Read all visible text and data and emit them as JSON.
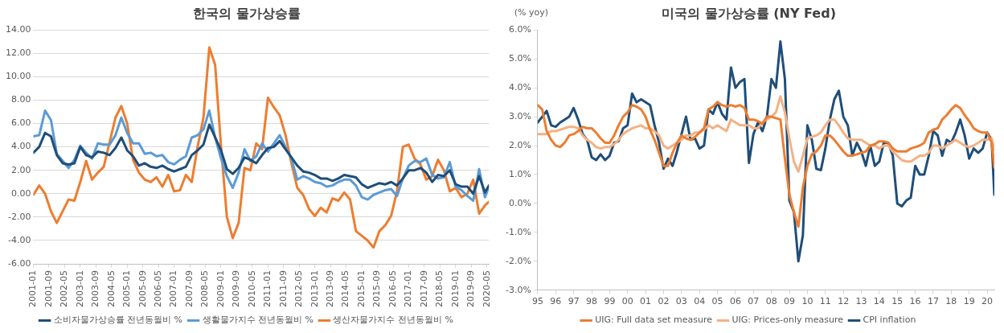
{
  "chart_data": [
    {
      "type": "line",
      "title": "한국의 물가상승률",
      "grid": "y",
      "legend": "bottom",
      "x": [
        "2001-01",
        "2001-04",
        "2001-07",
        "2001-10",
        "2002-01",
        "2002-04",
        "2002-07",
        "2002-10",
        "2003-01",
        "2003-04",
        "2003-07",
        "2003-10",
        "2004-01",
        "2004-04",
        "2004-07",
        "2004-10",
        "2005-01",
        "2005-04",
        "2005-07",
        "2005-10",
        "2006-01",
        "2006-04",
        "2006-07",
        "2006-10",
        "2007-01",
        "2007-04",
        "2007-07",
        "2007-10",
        "2008-01",
        "2008-04",
        "2008-07",
        "2008-10",
        "2009-01",
        "2009-04",
        "2009-07",
        "2009-10",
        "2010-01",
        "2010-04",
        "2010-07",
        "2010-10",
        "2011-01",
        "2011-04",
        "2011-07",
        "2011-10",
        "2012-01",
        "2012-04",
        "2012-07",
        "2012-10",
        "2013-01",
        "2013-04",
        "2013-07",
        "2013-10",
        "2014-01",
        "2014-04",
        "2014-07",
        "2014-10",
        "2015-01",
        "2015-04",
        "2015-07",
        "2015-10",
        "2016-01",
        "2016-04",
        "2016-07",
        "2016-10",
        "2017-01",
        "2017-04",
        "2017-07",
        "2017-10",
        "2018-01",
        "2018-04",
        "2018-07",
        "2018-10",
        "2019-01",
        "2019-04",
        "2019-07",
        "2019-10",
        "2020-01",
        "2020-04",
        "2020-06"
      ],
      "xlim": [
        "2001-01",
        "2020-06"
      ],
      "xticks": [
        "2001-01",
        "2001-09",
        "2002-05",
        "2003-01",
        "2003-09",
        "2004-05",
        "2005-01",
        "2005-09",
        "2006-05",
        "2007-01",
        "2007-09",
        "2008-05",
        "2009-01",
        "2009-09",
        "2010-05",
        "2011-01",
        "2011-09",
        "2012-05",
        "2013-01",
        "2013-09",
        "2014-05",
        "2015-01",
        "2015-09",
        "2016-05",
        "2017-01",
        "2017-09",
        "2018-05",
        "2019-01",
        "2019-09",
        "2020-05"
      ],
      "ylim": [
        -6,
        14
      ],
      "yticks": [
        {
          "value": -6,
          "label": "-6.00"
        },
        {
          "value": -4,
          "label": "-4.00"
        },
        {
          "value": -2,
          "label": "-2.00"
        },
        {
          "value": 0,
          "label": "0.00"
        },
        {
          "value": 2,
          "label": "2.00"
        },
        {
          "value": 4,
          "label": "4.00"
        },
        {
          "value": 6,
          "label": "6.00"
        },
        {
          "value": 8,
          "label": "8.00"
        },
        {
          "value": 10,
          "label": "10.00"
        },
        {
          "value": 12,
          "label": "12.00"
        },
        {
          "value": 14,
          "label": "14.00"
        }
      ],
      "series": [
        {
          "name": "소비자물가상승률 전년동월비 %",
          "color": "#1f4e79",
          "values": [
            3.5,
            4.0,
            5.2,
            4.9,
            3.3,
            2.6,
            2.5,
            2.6,
            4.0,
            3.3,
            3.1,
            3.6,
            3.5,
            3.3,
            3.9,
            4.8,
            3.7,
            3.2,
            2.4,
            2.6,
            2.3,
            2.2,
            2.4,
            2.1,
            1.9,
            2.1,
            2.3,
            3.3,
            3.7,
            4.2,
            5.9,
            4.8,
            3.7,
            2.1,
            1.7,
            2.2,
            3.1,
            2.9,
            2.6,
            3.3,
            3.9,
            4.0,
            4.5,
            3.8,
            3.1,
            2.4,
            1.9,
            1.8,
            1.6,
            1.3,
            1.3,
            1.1,
            1.3,
            1.6,
            1.5,
            1.4,
            0.8,
            0.5,
            0.7,
            0.9,
            0.8,
            1.0,
            0.7,
            1.3,
            2.0,
            2.0,
            2.2,
            1.8,
            1.0,
            1.6,
            1.5,
            2.0,
            0.8,
            0.6,
            0.6,
            0.0,
            1.5,
            0.1,
            0.7
          ]
        },
        {
          "name": "생활물가지수 전년동월비 %",
          "color": "#5b9bd5",
          "values": [
            4.9,
            5.0,
            7.1,
            6.3,
            3.4,
            2.8,
            2.2,
            2.9,
            4.1,
            3.5,
            3.0,
            4.3,
            4.2,
            4.2,
            5.0,
            6.5,
            5.2,
            4.3,
            4.3,
            3.4,
            3.5,
            3.2,
            3.3,
            2.7,
            2.5,
            2.9,
            3.2,
            4.8,
            5.0,
            5.5,
            7.1,
            4.8,
            3.0,
            1.5,
            0.5,
            1.8,
            3.8,
            2.8,
            3.2,
            4.3,
            3.6,
            4.3,
            5.0,
            4.0,
            3.0,
            1.2,
            1.5,
            1.3,
            1.0,
            0.9,
            0.6,
            0.7,
            1.0,
            1.2,
            1.2,
            0.7,
            -0.3,
            -0.5,
            -0.1,
            0.1,
            0.3,
            0.4,
            -0.2,
            1.3,
            2.4,
            2.8,
            2.7,
            3.0,
            1.6,
            1.3,
            1.4,
            2.7,
            0.6,
            0.3,
            -0.2,
            -0.6,
            2.1,
            -0.3,
            0.6
          ]
        },
        {
          "name": "생산자물가지수 전년동월비 %",
          "color": "#ed7d31",
          "values": [
            -0.1,
            0.7,
            0.0,
            -1.5,
            -2.5,
            -1.5,
            -0.5,
            -0.6,
            1.0,
            2.8,
            1.2,
            1.8,
            2.3,
            4.4,
            6.5,
            7.5,
            6.0,
            2.9,
            1.8,
            1.2,
            1.0,
            1.4,
            0.6,
            1.6,
            0.2,
            0.3,
            1.6,
            1.0,
            4.0,
            6.5,
            12.5,
            11.0,
            4.0,
            -2.0,
            -3.8,
            -2.5,
            2.2,
            2.0,
            4.3,
            3.8,
            8.2,
            7.4,
            6.7,
            5.0,
            2.6,
            0.5,
            -0.1,
            -1.3,
            -1.9,
            -1.2,
            -1.6,
            -0.4,
            -0.6,
            0.1,
            -0.5,
            -3.2,
            -3.6,
            -4.0,
            -4.6,
            -3.2,
            -2.7,
            -1.9,
            0.2,
            4.0,
            4.2,
            3.0,
            2.5,
            1.2,
            1.5,
            2.9,
            2.0,
            0.2,
            0.5,
            -0.3,
            0.0,
            1.2,
            -1.7,
            -1.0,
            -0.7
          ]
        }
      ]
    },
    {
      "type": "line",
      "title": "미국의 물가상승률 (NY Fed)",
      "ylabel": "(% yoy)",
      "legend": "bottom",
      "x": [
        1995,
        1995.25,
        1995.5,
        1995.75,
        1996,
        1996.25,
        1996.5,
        1996.75,
        1997,
        1997.25,
        1997.5,
        1997.75,
        1998,
        1998.25,
        1998.5,
        1998.75,
        1999,
        1999.25,
        1999.5,
        1999.75,
        2000,
        2000.25,
        2000.5,
        2000.75,
        2001,
        2001.25,
        2001.5,
        2001.75,
        2002,
        2002.25,
        2002.5,
        2002.75,
        2003,
        2003.25,
        2003.5,
        2003.75,
        2004,
        2004.25,
        2004.5,
        2004.75,
        2005,
        2005.25,
        2005.5,
        2005.75,
        2006,
        2006.25,
        2006.5,
        2006.75,
        2007,
        2007.25,
        2007.5,
        2007.75,
        2008,
        2008.25,
        2008.5,
        2008.75,
        2009,
        2009.25,
        2009.5,
        2009.75,
        2010,
        2010.25,
        2010.5,
        2010.75,
        2011,
        2011.25,
        2011.5,
        2011.75,
        2012,
        2012.25,
        2012.5,
        2012.75,
        2013,
        2013.25,
        2013.5,
        2013.75,
        2014,
        2014.25,
        2014.5,
        2014.75,
        2015,
        2015.25,
        2015.5,
        2015.75,
        2016,
        2016.25,
        2016.5,
        2016.75,
        2017,
        2017.25,
        2017.5,
        2017.75,
        2018,
        2018.25,
        2018.5,
        2018.75,
        2019,
        2019.25,
        2019.5,
        2019.75,
        2020,
        2020.25,
        2020.4
      ],
      "xlim": [
        1995,
        2020.4
      ],
      "xticks": [
        {
          "value": 1995,
          "label": "95"
        },
        {
          "value": 1996,
          "label": "96"
        },
        {
          "value": 1997,
          "label": "97"
        },
        {
          "value": 1998,
          "label": "98"
        },
        {
          "value": 1999,
          "label": "99"
        },
        {
          "value": 2000,
          "label": "00"
        },
        {
          "value": 2001,
          "label": "01"
        },
        {
          "value": 2002,
          "label": "02"
        },
        {
          "value": 2003,
          "label": "03"
        },
        {
          "value": 2004,
          "label": "04"
        },
        {
          "value": 2005,
          "label": "05"
        },
        {
          "value": 2006,
          "label": "06"
        },
        {
          "value": 2007,
          "label": "07"
        },
        {
          "value": 2008,
          "label": "08"
        },
        {
          "value": 2009,
          "label": "09"
        },
        {
          "value": 2010,
          "label": "10"
        },
        {
          "value": 2011,
          "label": "11"
        },
        {
          "value": 2012,
          "label": "12"
        },
        {
          "value": 2013,
          "label": "13"
        },
        {
          "value": 2014,
          "label": "14"
        },
        {
          "value": 2015,
          "label": "15"
        },
        {
          "value": 2016,
          "label": "16"
        },
        {
          "value": 2017,
          "label": "17"
        },
        {
          "value": 2018,
          "label": "18"
        },
        {
          "value": 2019,
          "label": "19"
        },
        {
          "value": 2020,
          "label": "20"
        }
      ],
      "ylim": [
        -3,
        6
      ],
      "yticks": [
        {
          "value": -3,
          "label": "-3.0%"
        },
        {
          "value": -2,
          "label": "-2.0%"
        },
        {
          "value": -1,
          "label": "-1.0%"
        },
        {
          "value": 0,
          "label": "0.0%"
        },
        {
          "value": 1,
          "label": "1.0%"
        },
        {
          "value": 2,
          "label": "2.0%"
        },
        {
          "value": 3,
          "label": "3.0%"
        },
        {
          "value": 4,
          "label": "4.0%"
        },
        {
          "value": 5,
          "label": "5.0%"
        },
        {
          "value": 6,
          "label": "6.0%"
        }
      ],
      "series": [
        {
          "name": "UIG: Full data set measure",
          "color": "#ed7d31",
          "values": [
            3.4,
            3.25,
            2.5,
            2.2,
            2.0,
            1.95,
            2.1,
            2.35,
            2.4,
            2.5,
            2.65,
            2.6,
            2.6,
            2.45,
            2.25,
            2.1,
            2.1,
            2.35,
            2.7,
            3.0,
            3.15,
            3.4,
            3.35,
            3.25,
            3.0,
            2.55,
            2.2,
            1.75,
            1.3,
            1.3,
            1.75,
            2.1,
            2.35,
            2.25,
            2.2,
            2.3,
            2.45,
            2.6,
            3.25,
            3.35,
            3.5,
            3.4,
            3.35,
            3.4,
            3.35,
            3.4,
            3.3,
            2.9,
            2.9,
            2.85,
            2.75,
            3.0,
            3.0,
            2.95,
            2.9,
            1.55,
            0.3,
            -0.3,
            -0.8,
            0.55,
            1.3,
            1.7,
            1.8,
            2.0,
            2.35,
            2.35,
            2.2,
            2.0,
            1.8,
            1.65,
            1.65,
            1.7,
            1.75,
            1.8,
            2.0,
            2.05,
            2.15,
            2.15,
            2.1,
            1.9,
            1.8,
            1.8,
            1.8,
            1.9,
            1.95,
            2.0,
            2.1,
            2.45,
            2.55,
            2.6,
            2.9,
            3.05,
            3.25,
            3.4,
            3.3,
            3.05,
            2.85,
            2.6,
            2.5,
            2.45,
            2.45,
            2.1,
            1.25
          ]
        },
        {
          "name": "UIG: Prices-only measure",
          "color": "#f4b183",
          "values": [
            2.4,
            2.4,
            2.4,
            2.5,
            2.5,
            2.55,
            2.6,
            2.65,
            2.65,
            2.6,
            2.35,
            2.2,
            2.1,
            1.95,
            1.9,
            1.95,
            1.95,
            2.05,
            2.2,
            2.4,
            2.5,
            2.6,
            2.65,
            2.7,
            2.6,
            2.6,
            2.5,
            2.35,
            2.0,
            1.9,
            2.0,
            2.1,
            2.2,
            2.35,
            2.35,
            2.45,
            2.45,
            2.55,
            2.7,
            2.6,
            2.7,
            2.6,
            2.5,
            2.9,
            2.8,
            2.7,
            2.7,
            2.7,
            2.6,
            2.6,
            2.8,
            2.9,
            3.0,
            3.15,
            3.7,
            3.15,
            2.25,
            1.45,
            1.1,
            1.65,
            2.25,
            2.3,
            2.35,
            2.45,
            2.7,
            2.9,
            2.9,
            2.7,
            2.45,
            2.25,
            2.2,
            2.2,
            2.2,
            2.1,
            2.0,
            2.0,
            1.9,
            2.0,
            2.0,
            1.8,
            1.65,
            1.5,
            1.45,
            1.45,
            1.55,
            1.65,
            1.65,
            1.75,
            2.0,
            2.0,
            1.9,
            2.0,
            2.1,
            2.2,
            2.1,
            2.0,
            1.95,
            2.0,
            2.1,
            2.2,
            2.2,
            2.25,
            1.85
          ]
        },
        {
          "name": "CPI inflation",
          "color": "#1f4e79",
          "values": [
            2.8,
            3.0,
            3.2,
            2.7,
            2.65,
            2.8,
            2.9,
            3.0,
            3.3,
            2.9,
            2.4,
            2.2,
            1.6,
            1.5,
            1.7,
            1.5,
            1.65,
            2.1,
            2.15,
            2.6,
            2.7,
            3.8,
            3.5,
            3.6,
            3.5,
            3.4,
            2.7,
            2.1,
            1.2,
            1.55,
            1.3,
            1.8,
            2.4,
            3.0,
            2.2,
            2.25,
            1.9,
            2.0,
            3.25,
            3.1,
            3.5,
            3.1,
            2.9,
            4.7,
            4.0,
            4.2,
            4.3,
            1.4,
            2.4,
            2.8,
            2.5,
            3.0,
            4.3,
            4.0,
            5.6,
            4.3,
            0.1,
            -0.3,
            -2.0,
            -1.1,
            2.7,
            2.2,
            1.2,
            1.15,
            1.9,
            2.9,
            3.6,
            3.9,
            3.0,
            2.7,
            1.65,
            2.1,
            1.8,
            1.3,
            2.0,
            1.3,
            1.45,
            2.1,
            2.1,
            1.65,
            0.0,
            -0.1,
            0.1,
            0.2,
            1.3,
            1.0,
            1.0,
            1.65,
            2.5,
            2.35,
            1.65,
            2.2,
            2.1,
            2.45,
            2.9,
            2.35,
            1.55,
            1.9,
            1.75,
            1.9,
            2.45,
            2.2,
            0.3
          ]
        }
      ]
    }
  ]
}
